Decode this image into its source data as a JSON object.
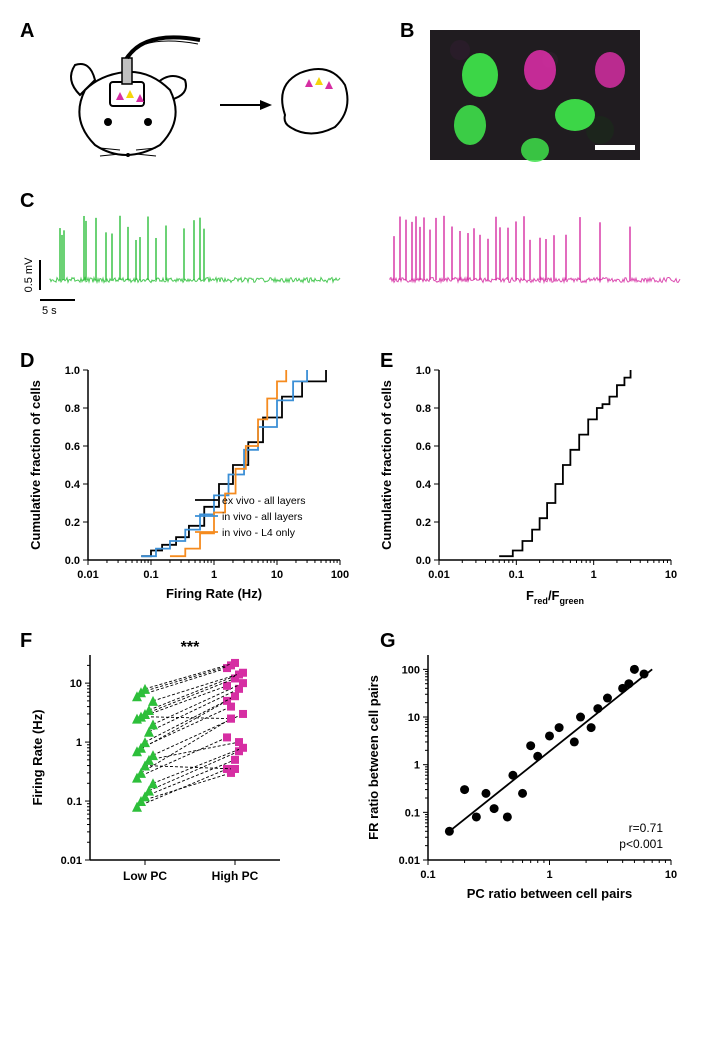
{
  "labels": {
    "A": "A",
    "B": "B",
    "C": "C",
    "D": "D",
    "E": "E",
    "F": "F",
    "G": "G"
  },
  "colors": {
    "green": "#2dbf3a",
    "magenta": "#d62ea3",
    "black": "#000000",
    "blue": "#3b8fd6",
    "orange": "#f58b1f",
    "bg": "#ffffff",
    "micro_dark": "#1b1b1b"
  },
  "panelC": {
    "scale_y": "0.5 mV",
    "scale_x": "5 s",
    "green_spikes_x": [
      10,
      12,
      14,
      34,
      36,
      46,
      56,
      62,
      70,
      78,
      86,
      90,
      98,
      106,
      116,
      134,
      144,
      150,
      154
    ],
    "magenta_spikes_x": [
      4,
      10,
      16,
      22,
      26,
      30,
      34,
      40,
      46,
      54,
      62,
      70,
      78,
      84,
      90,
      98,
      106,
      110,
      118,
      126,
      134,
      140,
      150,
      156,
      164,
      176,
      190,
      210,
      240
    ]
  },
  "panelD": {
    "ylabel": "Cumulative fraction of cells",
    "xlabel": "Firing Rate (Hz)",
    "xticks": [
      "0.01",
      "0.1",
      "1",
      "10",
      "100"
    ],
    "yticks": [
      "0.0",
      "0.2",
      "0.4",
      "0.6",
      "0.8",
      "1.0"
    ],
    "legend": [
      {
        "label": "ex vivo - all layers",
        "color": "#000000"
      },
      {
        "label": "in vivo - all layers",
        "color": "#3b8fd6"
      },
      {
        "label": "in vivo - L4 only",
        "color": "#f58b1f"
      }
    ],
    "series": {
      "black": [
        [
          0.07,
          0.02
        ],
        [
          0.1,
          0.05
        ],
        [
          0.15,
          0.08
        ],
        [
          0.25,
          0.12
        ],
        [
          0.4,
          0.18
        ],
        [
          0.7,
          0.28
        ],
        [
          1.2,
          0.4
        ],
        [
          2,
          0.5
        ],
        [
          3.5,
          0.62
        ],
        [
          6,
          0.75
        ],
        [
          12,
          0.86
        ],
        [
          25,
          0.94
        ],
        [
          60,
          1.0
        ]
      ],
      "blue": [
        [
          0.07,
          0.02
        ],
        [
          0.12,
          0.06
        ],
        [
          0.2,
          0.1
        ],
        [
          0.35,
          0.16
        ],
        [
          0.6,
          0.24
        ],
        [
          1.0,
          0.34
        ],
        [
          1.7,
          0.45
        ],
        [
          3,
          0.58
        ],
        [
          5,
          0.7
        ],
        [
          10,
          0.84
        ],
        [
          18,
          0.94
        ],
        [
          30,
          1.0
        ]
      ],
      "orange": [
        [
          0.2,
          0.02
        ],
        [
          0.35,
          0.06
        ],
        [
          0.6,
          0.14
        ],
        [
          1.0,
          0.25
        ],
        [
          1.5,
          0.35
        ],
        [
          2.2,
          0.48
        ],
        [
          3.2,
          0.6
        ],
        [
          5,
          0.74
        ],
        [
          7,
          0.85
        ],
        [
          10,
          0.94
        ],
        [
          14,
          1.0
        ]
      ]
    }
  },
  "panelE": {
    "ylabel": "Cumulative fraction of cells",
    "xlabel": "F_red/F_green",
    "xlabel_sub1": "red",
    "xlabel_sub2": "green",
    "xlabel_pre": "F",
    "xlabel_mid": "/F",
    "xticks": [
      "0.01",
      "0.1",
      "1",
      "10"
    ],
    "yticks": [
      "0.0",
      "0.2",
      "0.4",
      "0.6",
      "0.8",
      "1.0"
    ],
    "series": [
      [
        0.06,
        0.02
      ],
      [
        0.09,
        0.05
      ],
      [
        0.12,
        0.1
      ],
      [
        0.16,
        0.16
      ],
      [
        0.2,
        0.22
      ],
      [
        0.25,
        0.3
      ],
      [
        0.32,
        0.4
      ],
      [
        0.4,
        0.5
      ],
      [
        0.5,
        0.58
      ],
      [
        0.65,
        0.66
      ],
      [
        0.85,
        0.74
      ],
      [
        1.1,
        0.8
      ],
      [
        1.3,
        0.82
      ],
      [
        1.6,
        0.86
      ],
      [
        2.0,
        0.92
      ],
      [
        2.5,
        0.96
      ],
      [
        3.0,
        1.0
      ]
    ]
  },
  "panelF": {
    "ylabel": "Firing Rate (Hz)",
    "sig": "***",
    "cats": [
      "Low PC",
      "High PC"
    ],
    "yticks": [
      "0.01",
      "0.1",
      "1",
      "10"
    ],
    "pairs": [
      [
        0.08,
        0.35
      ],
      [
        0.1,
        0.3
      ],
      [
        0.12,
        0.5
      ],
      [
        0.15,
        0.7
      ],
      [
        0.2,
        0.8
      ],
      [
        0.25,
        1.2
      ],
      [
        0.3,
        2.5
      ],
      [
        0.4,
        0.35
      ],
      [
        0.5,
        1.0
      ],
      [
        0.6,
        3.0
      ],
      [
        0.7,
        5.0
      ],
      [
        0.8,
        4.0
      ],
      [
        1.0,
        6.0
      ],
      [
        1.5,
        8.0
      ],
      [
        2.0,
        10.0
      ],
      [
        2.5,
        9.0
      ],
      [
        2.7,
        2.5
      ],
      [
        3.0,
        12.0
      ],
      [
        3.5,
        14.0
      ],
      [
        5.0,
        15.0
      ],
      [
        6.0,
        18.0
      ],
      [
        7.0,
        20.0
      ],
      [
        8.0,
        22.0
      ]
    ]
  },
  "panelG": {
    "ylabel": "FR ratio between cell pairs",
    "xlabel": "PC ratio between cell pairs",
    "xticks": [
      "0.1",
      "1",
      "10"
    ],
    "yticks": [
      "0.01",
      "0.1",
      "1",
      "10",
      "100"
    ],
    "stats": {
      "r": "r=0.71",
      "p": "p<0.001"
    },
    "points": [
      [
        0.15,
        0.04
      ],
      [
        0.2,
        0.3
      ],
      [
        0.25,
        0.08
      ],
      [
        0.3,
        0.25
      ],
      [
        0.35,
        0.12
      ],
      [
        0.45,
        0.08
      ],
      [
        0.5,
        0.6
      ],
      [
        0.6,
        0.25
      ],
      [
        0.7,
        2.5
      ],
      [
        0.8,
        1.5
      ],
      [
        1.0,
        4.0
      ],
      [
        1.2,
        6.0
      ],
      [
        1.6,
        3.0
      ],
      [
        1.8,
        10.0
      ],
      [
        2.2,
        6.0
      ],
      [
        2.5,
        15.0
      ],
      [
        3.0,
        25.0
      ],
      [
        4.0,
        40.0
      ],
      [
        4.5,
        50.0
      ],
      [
        5.0,
        100.0
      ],
      [
        6.0,
        80.0
      ]
    ],
    "fit": [
      [
        0.15,
        0.04
      ],
      [
        7,
        100
      ]
    ]
  }
}
